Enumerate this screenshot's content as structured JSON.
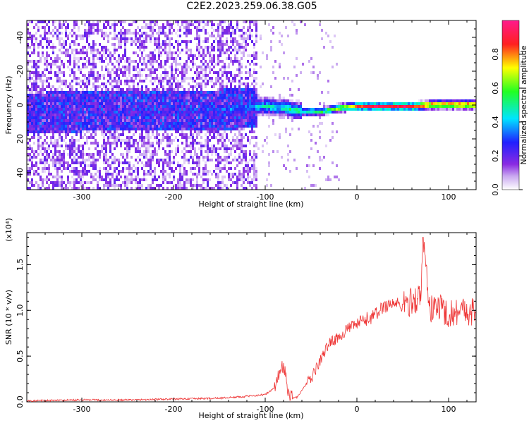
{
  "title": "C2E2.2023.259.06.38.G05",
  "chart_data": [
    {
      "type": "heatmap",
      "title": "C2E2.2023.259.06.38.G05",
      "xlabel": "Height of straight line (km)",
      "ylabel": "Frequency (Hz)",
      "xlim": [
        -360,
        130
      ],
      "ylim": [
        -50,
        50
      ],
      "xticks": [
        -300,
        -200,
        -100,
        0,
        100
      ],
      "yticks": [
        -40,
        -20,
        0,
        20,
        40
      ],
      "colorbar": {
        "label": "Normalized spectral amplitude",
        "range": [
          0.0,
          1.0
        ],
        "ticks": [
          0.0,
          0.2,
          0.4,
          0.6,
          0.8
        ],
        "colormap": "rainbow (violet-blue-cyan-green-yellow-red)"
      },
      "noise_cutoff_x": -110,
      "center_line": {
        "x": [
          -360,
          -300,
          -200,
          -150,
          -100,
          -80,
          -60,
          -40,
          -20,
          0,
          20,
          40,
          60,
          80,
          100,
          130
        ],
        "freq": [
          -4,
          -3,
          -3,
          -2,
          0,
          -1,
          -3,
          -3,
          -1,
          0,
          0,
          0,
          0,
          1,
          1,
          1
        ],
        "amplitude": [
          0.15,
          0.18,
          0.22,
          0.3,
          0.45,
          0.5,
          0.55,
          0.6,
          0.7,
          0.85,
          0.9,
          0.92,
          0.92,
          0.95,
          0.95,
          0.95
        ]
      }
    },
    {
      "type": "line",
      "xlabel": "Height of straight line (km)",
      "ylabel": "SNR (10 * v/v)",
      "y_multiplier": "(x10⁴)",
      "xlim": [
        -360,
        130
      ],
      "ylim": [
        0,
        1.85
      ],
      "xticks": [
        -300,
        -200,
        -100,
        0,
        100
      ],
      "yticks": [
        0.0,
        0.5,
        1.0,
        1.5
      ],
      "color": "#ee3333",
      "series": [
        {
          "x": [
            -360,
            -300,
            -250,
            -200,
            -150,
            -120,
            -100,
            -90,
            -85,
            -82,
            -78,
            -75,
            -70,
            -65,
            -55,
            -50,
            -45,
            -40,
            -35,
            -30,
            -20,
            -10,
            0,
            10,
            20,
            30,
            40,
            50,
            60,
            70,
            72,
            80,
            90,
            100,
            110,
            120,
            130
          ],
          "y": [
            0.01,
            0.02,
            0.02,
            0.03,
            0.04,
            0.06,
            0.08,
            0.15,
            0.3,
            0.4,
            0.3,
            0.1,
            0.05,
            0.05,
            0.2,
            0.25,
            0.35,
            0.45,
            0.55,
            0.65,
            0.7,
            0.8,
            0.85,
            0.9,
            0.95,
            1.05,
            1.08,
            1.05,
            1.1,
            1.15,
            1.8,
            1.0,
            1.05,
            0.95,
            1.0,
            1.0,
            0.98
          ]
        }
      ]
    }
  ],
  "ui": {
    "top_xlabel": "Height of straight line (km)",
    "top_ylabel": "Frequency (Hz)",
    "cbar_label": "Normalized spectral amplitude",
    "bot_xlabel": "Height of straight line (km)",
    "bot_ylabel": "SNR (10 * v/v)",
    "bot_multiplier": "(x10⁴)",
    "top_xticks": [
      "-300",
      "-200",
      "-100",
      "0",
      "100"
    ],
    "top_yticks": [
      "40",
      "20",
      "0",
      "-20",
      "-40"
    ],
    "cbar_ticks": [
      "0.0",
      "0.2",
      "0.4",
      "0.6",
      "0.8"
    ],
    "bot_xticks": [
      "-300",
      "-200",
      "-100",
      "0",
      "100"
    ],
    "bot_yticks": [
      "0.0",
      "0.5",
      "1.0",
      "1.5"
    ]
  }
}
